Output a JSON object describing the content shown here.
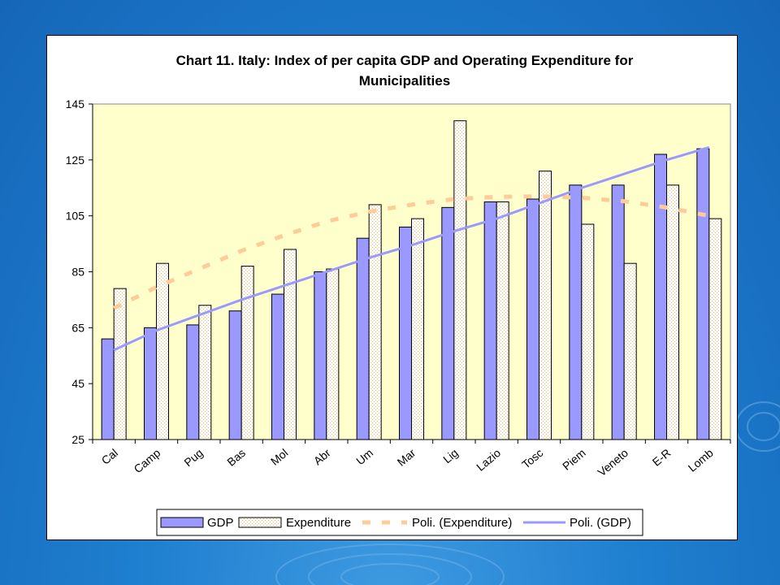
{
  "colors": {
    "slide_background": "#1f7fd0",
    "plot_background": "#ffffcc",
    "gdp_bar": "#9999ff",
    "expenditure_bar": "#fffbef",
    "gdp_trend": "#9999ff",
    "expenditure_trend": "#ffcc99"
  },
  "chart_data": {
    "type": "bar",
    "title": "Chart 11. Italy: Index of per capita GDP and Operating Expenditure for Municipalities",
    "title_lines": [
      "Chart 11. Italy: Index of per capita GDP and Operating Expenditure for",
      "Municipalities"
    ],
    "categories": [
      "Cal",
      "Camp",
      "Pug",
      "Bas",
      "Mol",
      "Abr",
      "Um",
      "Mar",
      "Lig",
      "Lazio",
      "Tosc",
      "Piem",
      "Veneto",
      "E-R",
      "Lomb"
    ],
    "series": [
      {
        "name": "GDP",
        "values": [
          61,
          65,
          66,
          71,
          77,
          85,
          97,
          101,
          108,
          110,
          111,
          116,
          116,
          127,
          129
        ]
      },
      {
        "name": "Expenditure",
        "values": [
          79,
          88,
          73,
          87,
          93,
          86,
          109,
          104,
          139,
          110,
          121,
          102,
          88,
          116,
          104
        ]
      }
    ],
    "trendlines": [
      {
        "name": "Poli. (Expenditure)",
        "values": [
          72,
          79.5,
          86,
          92.5,
          98,
          103,
          106.5,
          109,
          111,
          111.8,
          112,
          111.5,
          110.2,
          108,
          105
        ]
      },
      {
        "name": "Poli. (GDP)",
        "values": [
          57,
          64,
          69.5,
          75,
          80,
          85,
          90,
          94.5,
          99.5,
          104,
          109.5,
          115,
          120,
          125,
          129.5
        ]
      }
    ],
    "legend": [
      "GDP",
      "Expenditure",
      "Poli. (Expenditure)",
      "Poli. (GDP)"
    ],
    "legend_position": "bottom",
    "ylim": [
      25,
      145
    ],
    "yticks": [
      25,
      45,
      65,
      85,
      105,
      125,
      145
    ],
    "grid": false,
    "xlabel": "",
    "ylabel": ""
  }
}
